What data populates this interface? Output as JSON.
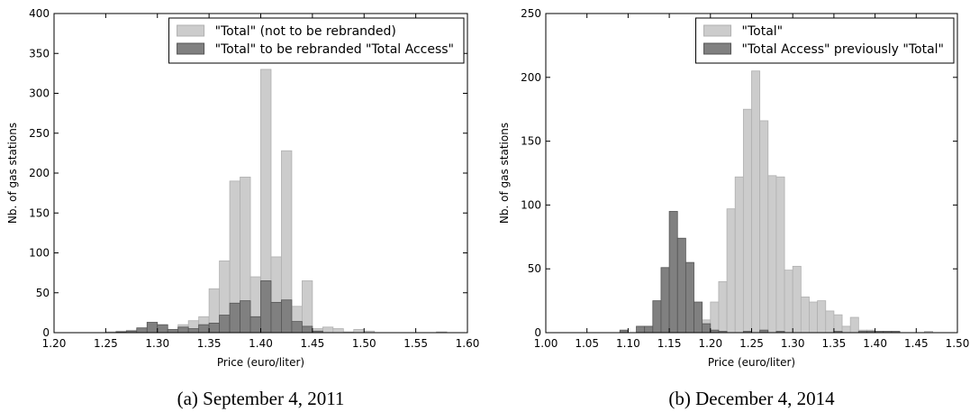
{
  "chart_data": [
    {
      "type": "histogram",
      "caption": "(a) September 4, 2011",
      "xlabel": "Price (euro/liter)",
      "ylabel": "Nb. of gas stations",
      "bins": [
        1.2,
        1.21,
        1.22,
        1.23,
        1.24,
        1.25,
        1.26,
        1.27,
        1.28,
        1.29,
        1.3,
        1.31,
        1.32,
        1.33,
        1.34,
        1.35,
        1.36,
        1.37,
        1.38,
        1.39,
        1.4,
        1.41,
        1.42,
        1.43,
        1.44,
        1.45,
        1.46,
        1.47,
        1.48,
        1.49,
        1.5,
        1.51,
        1.52,
        1.53,
        1.54,
        1.55,
        1.56,
        1.57,
        1.58,
        1.59,
        1.6
      ],
      "series": [
        {
          "name": "\"Total\" (not to be rebranded)",
          "color": "#cccccc",
          "edgecolor": "#b0b0b0",
          "values": [
            0,
            0,
            0,
            0,
            0,
            1,
            2,
            3,
            5,
            8,
            5,
            3,
            10,
            15,
            20,
            55,
            90,
            190,
            195,
            70,
            330,
            95,
            228,
            33,
            65,
            5,
            7,
            5,
            1,
            4,
            2,
            0,
            0,
            0,
            0,
            0,
            0,
            1,
            0,
            0
          ]
        },
        {
          "name": "\"Total\" to be rebranded \"Total Access\"",
          "color": "#808080",
          "edgecolor": "#555555",
          "values": [
            0,
            0,
            0,
            0,
            0,
            0,
            1,
            2,
            6,
            13,
            10,
            4,
            7,
            5,
            10,
            12,
            22,
            37,
            40,
            20,
            65,
            38,
            41,
            14,
            8,
            2,
            0,
            0,
            0,
            0,
            0,
            0,
            0,
            0,
            0,
            0,
            0,
            0,
            0,
            0
          ]
        }
      ],
      "xlim": [
        1.2,
        1.6
      ],
      "xticks": [
        {
          "value": 1.2,
          "label": "1.20"
        },
        {
          "value": 1.25,
          "label": "1.25"
        },
        {
          "value": 1.3,
          "label": "1.30"
        },
        {
          "value": 1.35,
          "label": "1.35"
        },
        {
          "value": 1.4,
          "label": "1.40"
        },
        {
          "value": 1.45,
          "label": "1.45"
        },
        {
          "value": 1.5,
          "label": "1.50"
        },
        {
          "value": 1.55,
          "label": "1.55"
        },
        {
          "value": 1.6,
          "label": "1.60"
        }
      ],
      "ylim": [
        0,
        400
      ],
      "yticks": [
        0,
        50,
        100,
        150,
        200,
        250,
        300,
        350,
        400
      ],
      "legend": "upper right"
    },
    {
      "type": "histogram",
      "caption": "(b) December 4, 2014",
      "xlabel": "Price (euro/liter)",
      "ylabel": "Nb. of gas stations",
      "bins": [
        1.0,
        1.01,
        1.02,
        1.03,
        1.04,
        1.05,
        1.06,
        1.07,
        1.08,
        1.09,
        1.1,
        1.11,
        1.12,
        1.13,
        1.14,
        1.15,
        1.16,
        1.17,
        1.18,
        1.19,
        1.2,
        1.21,
        1.22,
        1.23,
        1.24,
        1.25,
        1.26,
        1.27,
        1.28,
        1.29,
        1.3,
        1.31,
        1.32,
        1.33,
        1.34,
        1.35,
        1.36,
        1.37,
        1.38,
        1.39,
        1.4,
        1.41,
        1.42,
        1.43,
        1.44,
        1.45,
        1.46,
        1.47,
        1.48,
        1.49,
        1.5
      ],
      "series": [
        {
          "name": "\"Total\"",
          "color": "#cccccc",
          "edgecolor": "#b0b0b0",
          "values": [
            0,
            0,
            0,
            0,
            0,
            0,
            0,
            0,
            0,
            0,
            0,
            0,
            0,
            0,
            0,
            0,
            0,
            1,
            3,
            10,
            24,
            40,
            97,
            122,
            175,
            205,
            166,
            123,
            122,
            49,
            52,
            28,
            24,
            25,
            17,
            14,
            5,
            12,
            2,
            2,
            1,
            1,
            1,
            0,
            0,
            0,
            1,
            0,
            0,
            0
          ]
        },
        {
          "name": "\"Total Access\" previously \"Total\"",
          "color": "#808080",
          "edgecolor": "#555555",
          "values": [
            0,
            0,
            0,
            0,
            0,
            0,
            0,
            0,
            0,
            2,
            0,
            5,
            5,
            25,
            51,
            95,
            74,
            55,
            24,
            7,
            2,
            1,
            0,
            0,
            1,
            0,
            2,
            0,
            1,
            0,
            0,
            0,
            0,
            0,
            0,
            1,
            0,
            0,
            1,
            1,
            1,
            1,
            1,
            0,
            0,
            0,
            0,
            0,
            0,
            0
          ]
        }
      ],
      "xlim": [
        1.0,
        1.5
      ],
      "xticks": [
        {
          "value": 1.0,
          "label": "1.00"
        },
        {
          "value": 1.05,
          "label": "1.05"
        },
        {
          "value": 1.1,
          "label": "1.10"
        },
        {
          "value": 1.15,
          "label": "1.15"
        },
        {
          "value": 1.2,
          "label": "1.20"
        },
        {
          "value": 1.25,
          "label": "1.25"
        },
        {
          "value": 1.3,
          "label": "1.30"
        },
        {
          "value": 1.35,
          "label": "1.35"
        },
        {
          "value": 1.4,
          "label": "1.40"
        },
        {
          "value": 1.45,
          "label": "1.45"
        },
        {
          "value": 1.5,
          "label": "1.50"
        }
      ],
      "ylim": [
        0,
        250
      ],
      "yticks": [
        0,
        50,
        100,
        150,
        200,
        250
      ],
      "legend": "upper right"
    }
  ]
}
